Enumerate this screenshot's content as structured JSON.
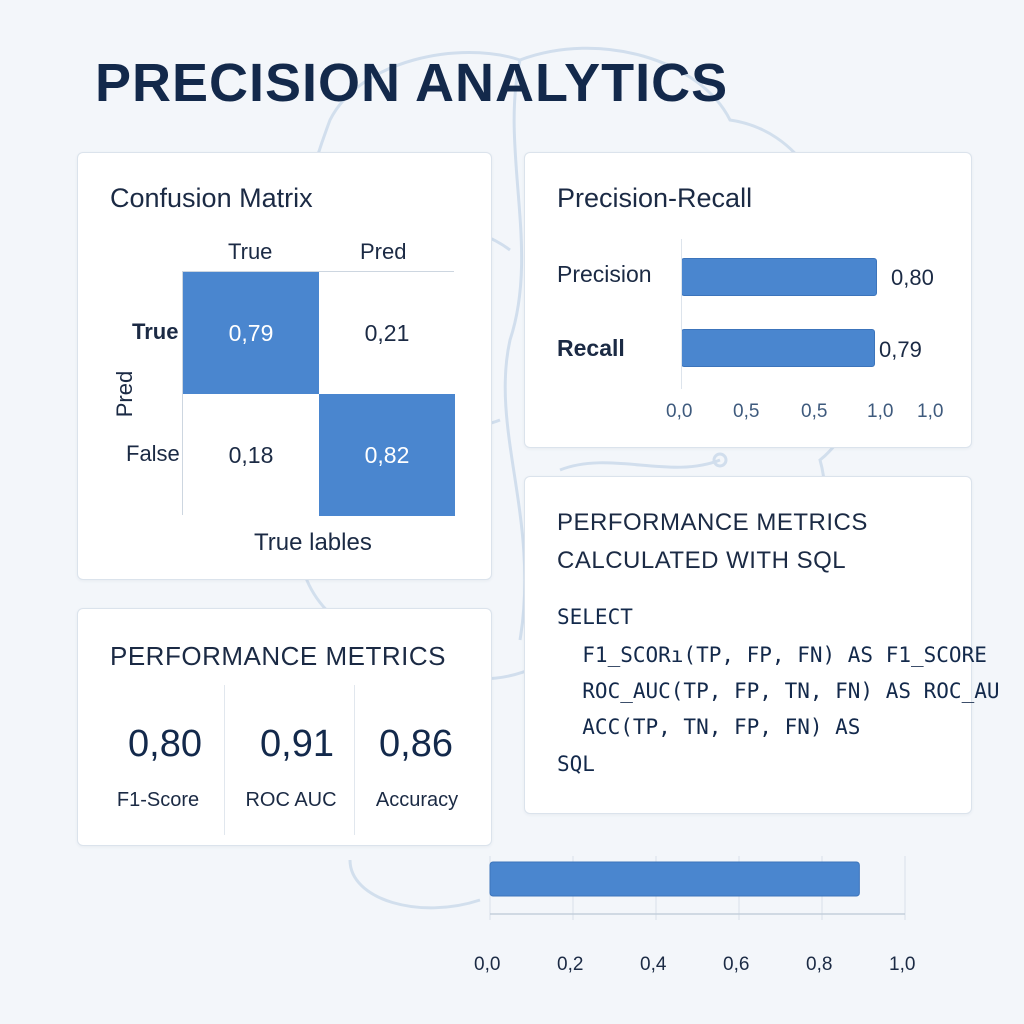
{
  "title": "PRECISION ANALYTICS",
  "colors": {
    "accent": "#4a86cf",
    "title": "#13294b",
    "background": "#f3f6fa"
  },
  "confusion_matrix": {
    "title": "Confusion Matrix",
    "col_headers": [
      "True",
      "Pred"
    ],
    "row_headers": [
      "True",
      "False"
    ],
    "y_axis_label": "Pred",
    "x_axis_label": "True lables",
    "cells": [
      [
        "0,79",
        "0,21"
      ],
      [
        "0,18",
        "0,82"
      ]
    ]
  },
  "precision_recall": {
    "title": "Precision-Recall",
    "labels": [
      "Precision",
      "Recall"
    ],
    "value_labels": [
      "0,80",
      "0,79"
    ],
    "ticks": [
      "0,0",
      "0,5",
      "0,5",
      "1,0",
      "1,0"
    ]
  },
  "performance_metrics": {
    "title": "PERFORMANCE METRICS",
    "items": [
      {
        "value": "0,80",
        "label": "F1-Score"
      },
      {
        "value": "0,91",
        "label": "ROC AUC"
      },
      {
        "value": "0,86",
        "label": "Accuracy"
      }
    ]
  },
  "sql_card": {
    "title_line1": "PERFORMANCE METRICS",
    "title_line2": "CALCULATED WITH SQL",
    "code": [
      "SELECT",
      "  F1_SCORı(TP, FP, FN) AS F1_SCORE",
      "  ROC_AUC(TP, FP, TN, FN) AS ROC_AU",
      "  ACC(TP, TN, FP, FN) AS",
      "SQL"
    ]
  },
  "bottom_chart": {
    "ticks": [
      "0,0",
      "0,2",
      "0,4",
      "0,6",
      "0,8",
      "1,0"
    ]
  },
  "chart_data": [
    {
      "type": "heatmap",
      "title": "Confusion Matrix",
      "xlabel": "True lables",
      "ylabel": "Pred",
      "x_categories": [
        "True",
        "Pred"
      ],
      "y_categories": [
        "True",
        "False"
      ],
      "values": [
        [
          0.79,
          0.21
        ],
        [
          0.18,
          0.82
        ]
      ]
    },
    {
      "type": "bar",
      "title": "Precision-Recall",
      "orientation": "horizontal",
      "categories": [
        "Precision",
        "Recall"
      ],
      "values": [
        0.8,
        0.79
      ],
      "xlim": [
        0,
        1
      ]
    },
    {
      "type": "bar",
      "orientation": "horizontal",
      "categories": [
        ""
      ],
      "values": [
        0.89
      ],
      "xlim": [
        0,
        1
      ]
    }
  ]
}
